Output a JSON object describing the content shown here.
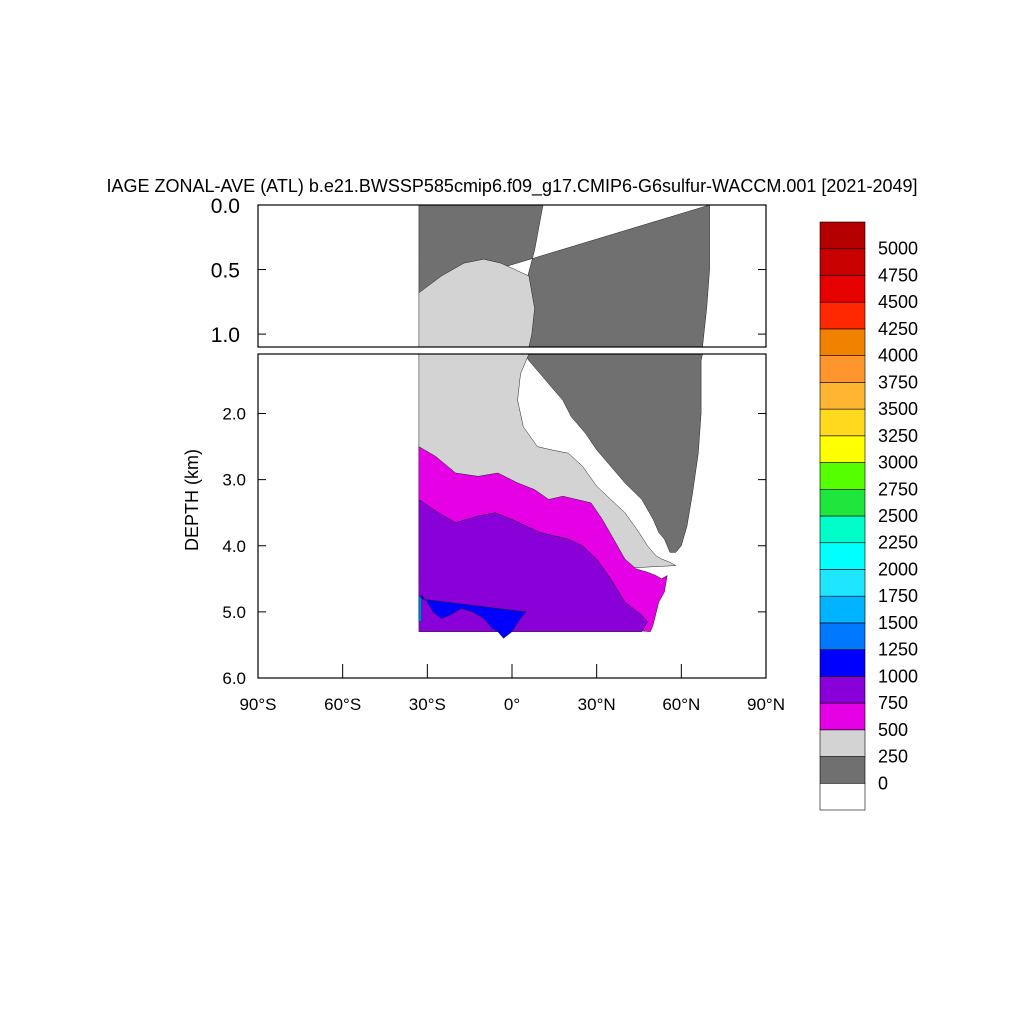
{
  "chart_data": {
    "type": "heatmap",
    "title": "IAGE ZONAL-AVE (ATL) b.e21.BWSSP585cmip6.f09_g17.CMIP6-G6sulfur-WACCM.001 [2021-2049]",
    "xlabel": "",
    "ylabel": "DEPTH (km)",
    "xlim": [
      -90,
      90
    ],
    "x_ticks": [
      {
        "value": -90,
        "label": "90°S"
      },
      {
        "value": -60,
        "label": "60°S"
      },
      {
        "value": -30,
        "label": "30°S"
      },
      {
        "value": 0,
        "label": "0°"
      },
      {
        "value": 30,
        "label": "30°N"
      },
      {
        "value": 60,
        "label": "60°N"
      },
      {
        "value": 90,
        "label": "90°N"
      }
    ],
    "upper_panel": {
      "ylim": [
        0,
        1.1
      ],
      "y_ticks": [
        {
          "value": 0,
          "label": "0.0"
        },
        {
          "value": 0.5,
          "label": "0.5"
        },
        {
          "value": 1.0,
          "label": "1.0"
        }
      ]
    },
    "lower_panel": {
      "ylim": [
        1.1,
        6.0
      ],
      "y_ticks": [
        {
          "value": 2,
          "label": "2.0"
        },
        {
          "value": 3,
          "label": "3.0"
        },
        {
          "value": 4,
          "label": "4.0"
        },
        {
          "value": 5,
          "label": "5.0"
        },
        {
          "value": 6,
          "label": "6.0"
        }
      ]
    },
    "colorbar": {
      "levels": [
        "0",
        "250",
        "500",
        "750",
        "1000",
        "1250",
        "1500",
        "1750",
        "2000",
        "2250",
        "2500",
        "2750",
        "3000",
        "3250",
        "3500",
        "3750",
        "4000",
        "4250",
        "4500",
        "4750",
        "5000"
      ],
      "colors": [
        "#ffffff",
        "#707070",
        "#d3d3d3",
        "#e600e6",
        "#8a00d9",
        "#0000ff",
        "#0078ff",
        "#00b4ff",
        "#1ee6ff",
        "#00ffff",
        "#00ffc8",
        "#1ee63c",
        "#55ff00",
        "#ffff00",
        "#ffd91e",
        "#ffb432",
        "#ff962d",
        "#f08200",
        "#ff2800",
        "#e60000",
        "#c80000",
        "#b40000"
      ]
    },
    "regions": [
      {
        "band": "250-500",
        "color": "#707070",
        "lat": [
          -33,
          -33,
          -33,
          -23,
          -12,
          -6,
          -1,
          5,
          9,
          11,
          8,
          5,
          3,
          3,
          6,
          10,
          14,
          18,
          21,
          26,
          30,
          35,
          40,
          46,
          50,
          52,
          54,
          56,
          58,
          60,
          62,
          64,
          66,
          67,
          67,
          69,
          70,
          70
        ],
        "depth": [
          0.68,
          0.4,
          0,
          0,
          0,
          0,
          0,
          0,
          0,
          0,
          0.35,
          0.6,
          0.8,
          1.0,
          1.2,
          1.4,
          1.6,
          1.8,
          2.05,
          2.3,
          2.55,
          2.8,
          3.05,
          3.3,
          3.6,
          3.8,
          3.9,
          4.1,
          4.1,
          4.0,
          3.7,
          3.2,
          2.6,
          2.0,
          1.2,
          0.8,
          0.5,
          0
        ]
      },
      {
        "band": "500-750",
        "color": "#d3d3d3",
        "lat": [
          -33,
          -33,
          -33,
          -25,
          -17,
          -10,
          -4,
          1,
          6,
          8,
          7,
          5,
          3,
          2,
          4,
          9,
          14,
          20,
          25,
          30,
          35,
          40,
          45,
          48,
          51,
          53,
          56,
          58
        ],
        "depth": [
          4.5,
          3.3,
          0.68,
          0.55,
          0.45,
          0.42,
          0.45,
          0.5,
          0.55,
          0.8,
          1.0,
          1.2,
          1.4,
          1.8,
          2.2,
          2.5,
          2.55,
          2.6,
          2.8,
          3.1,
          3.3,
          3.5,
          3.8,
          4.0,
          4.15,
          4.2,
          4.25,
          4.3
        ]
      },
      {
        "band": "750-1000",
        "color": "#e600e6",
        "lat": [
          -33,
          -33,
          -33,
          -27,
          -20,
          -12,
          -5,
          2,
          8,
          13,
          18,
          23,
          28,
          32,
          36,
          40,
          44,
          48,
          51,
          53,
          55,
          54,
          52,
          50,
          49
        ],
        "depth": [
          5.0,
          3.3,
          2.5,
          2.65,
          2.9,
          2.95,
          2.9,
          3.05,
          3.15,
          3.3,
          3.25,
          3.3,
          3.35,
          3.6,
          3.9,
          4.2,
          4.35,
          4.4,
          4.45,
          4.5,
          4.45,
          4.7,
          4.85,
          5.2,
          5.3
        ]
      },
      {
        "band": "1000-1250",
        "color": "#8a00d9",
        "lat": [
          -33,
          -33,
          -33,
          -26,
          -20,
          -12,
          -6,
          0,
          5,
          10,
          15,
          20,
          25,
          30,
          35,
          40,
          43,
          46,
          48,
          46
        ],
        "depth": [
          5.3,
          4.7,
          3.3,
          3.5,
          3.65,
          3.55,
          3.5,
          3.6,
          3.7,
          3.8,
          3.85,
          3.9,
          4.0,
          4.2,
          4.5,
          4.85,
          4.95,
          5.05,
          5.15,
          5.3
        ]
      },
      {
        "band": "1250-1500",
        "color": "#0000ff",
        "lat": [
          -33,
          -32,
          -30,
          -28,
          -25,
          -22,
          -18,
          -14,
          -10,
          -7,
          -5,
          -3,
          0,
          3,
          5
        ],
        "depth": [
          4.8,
          4.75,
          4.85,
          5.0,
          5.1,
          5.05,
          4.95,
          5.0,
          5.1,
          5.25,
          5.3,
          5.4,
          5.3,
          5.1,
          5.0
        ]
      },
      {
        "band": "1500-1750",
        "color": "#0078ff",
        "lat": [
          -33,
          -32,
          -32,
          -33
        ],
        "depth": [
          4.75,
          4.8,
          5.15,
          5.15
        ]
      }
    ]
  }
}
